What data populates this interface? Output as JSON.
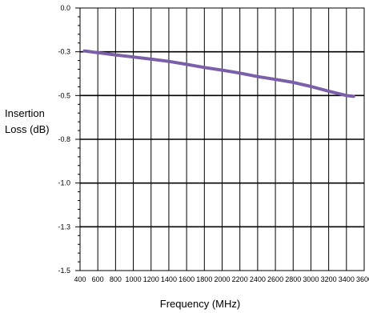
{
  "chart_data": {
    "type": "line",
    "title": "",
    "xlabel": "Frequency (MHz)",
    "ylabel_lines": [
      "Insertion",
      "Loss (dB)"
    ],
    "xlim": [
      400,
      3600
    ],
    "ylim": [
      -1.5,
      0.0
    ],
    "x_ticks": [
      400,
      600,
      800,
      1000,
      1200,
      1400,
      1600,
      1800,
      2000,
      2200,
      2400,
      2600,
      2800,
      3000,
      3200,
      3400,
      3600
    ],
    "y_ticks": [
      {
        "value": 0.0,
        "label": "0.0"
      },
      {
        "value": -0.25,
        "label": "-0.3"
      },
      {
        "value": -0.5,
        "label": "-0.5"
      },
      {
        "value": -0.75,
        "label": "-0.8"
      },
      {
        "value": -1.0,
        "label": "-1.0"
      },
      {
        "value": -1.25,
        "label": "-1.3"
      },
      {
        "value": -1.5,
        "label": "-1.5"
      }
    ],
    "grid": true,
    "legend": "none",
    "series": [
      {
        "color": "#7b5fa8",
        "x": [
          450,
          600,
          800,
          1000,
          1200,
          1400,
          1600,
          1800,
          2000,
          2200,
          2400,
          2600,
          2800,
          3000,
          3200,
          3400,
          3480
        ],
        "y": [
          -0.245,
          -0.255,
          -0.268,
          -0.28,
          -0.292,
          -0.305,
          -0.322,
          -0.34,
          -0.355,
          -0.372,
          -0.392,
          -0.408,
          -0.425,
          -0.448,
          -0.475,
          -0.5,
          -0.505
        ]
      }
    ]
  }
}
